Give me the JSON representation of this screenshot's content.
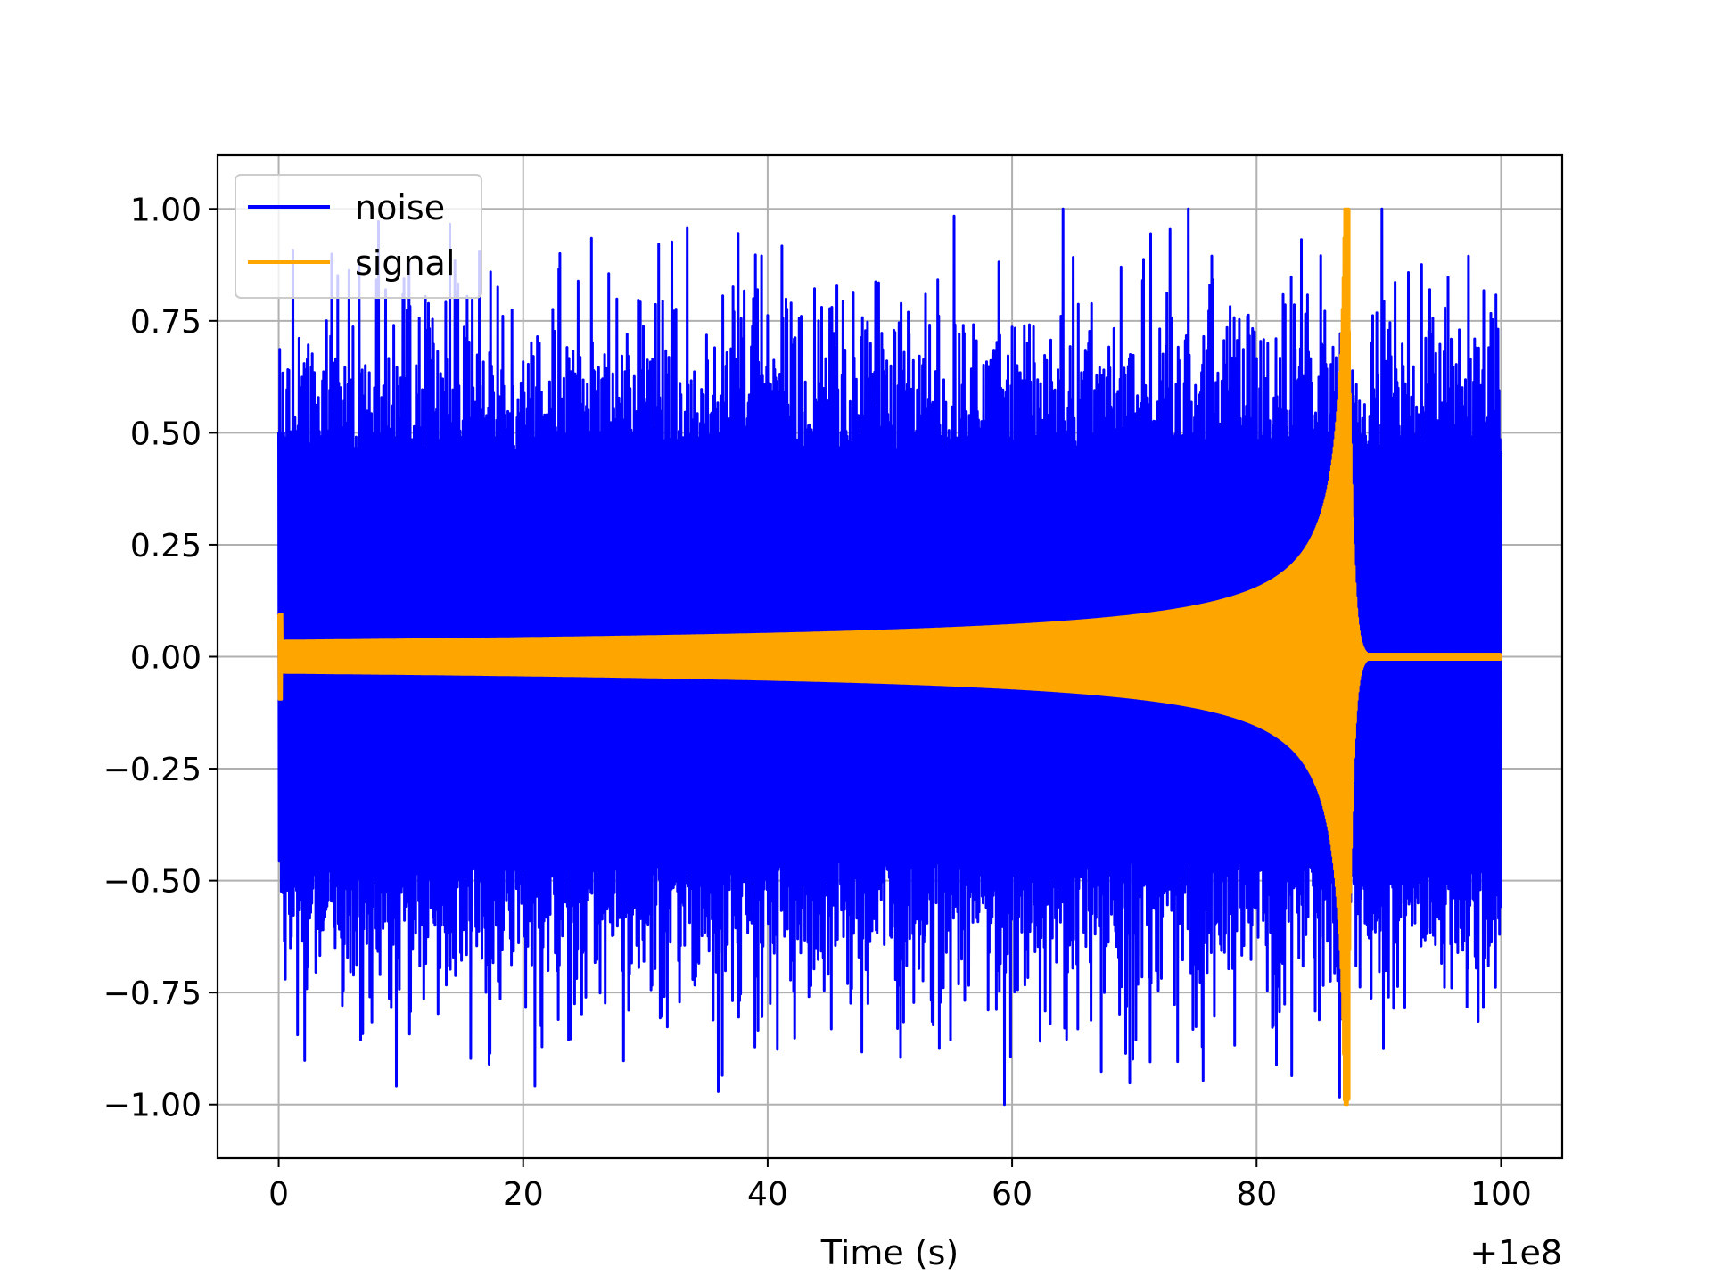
{
  "chart_data": {
    "type": "line",
    "xlabel": "Time (s)",
    "ylabel": "",
    "x_offset_text": "+1e8",
    "xlim": [
      -5,
      105
    ],
    "ylim": [
      -1.12,
      1.12
    ],
    "x_ticks": [
      0,
      20,
      40,
      60,
      80,
      100
    ],
    "x_tick_labels": [
      "0",
      "20",
      "40",
      "60",
      "80",
      "100"
    ],
    "y_ticks": [
      1.0,
      0.75,
      0.5,
      0.25,
      0.0,
      -0.25,
      -0.5,
      -0.75,
      -1.0
    ],
    "y_tick_labels": [
      "1.00",
      "0.75",
      "0.50",
      "0.25",
      "0.00",
      "−0.25",
      "−0.50",
      "−0.75",
      "−1.00"
    ],
    "grid": true,
    "legend_position": "top-left",
    "series": [
      {
        "name": "noise",
        "color": "#0000ff",
        "description_free": true,
        "x_range": [
          0,
          100
        ],
        "max_value": 1.0,
        "min_value": -1.02
      },
      {
        "name": "signal",
        "color": "#ffa500",
        "x_range": [
          0,
          100
        ],
        "peak_time": 87.5,
        "max_value": 1.0,
        "min_value": -0.99
      }
    ]
  }
}
